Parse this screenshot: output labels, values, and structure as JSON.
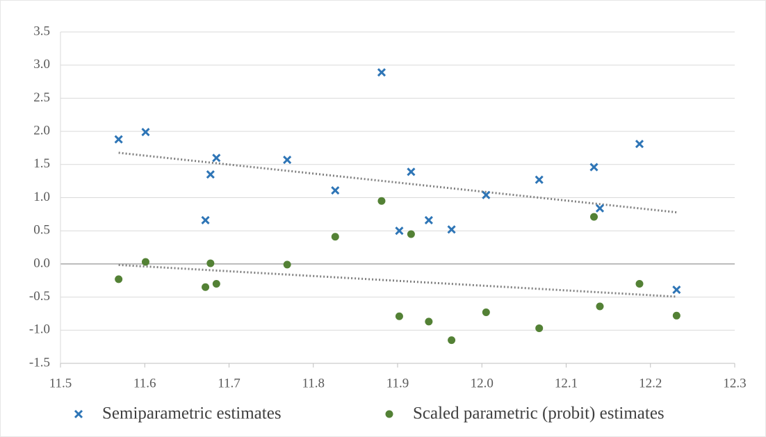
{
  "chart_data": {
    "type": "scatter",
    "xlim": [
      11.5,
      12.3
    ],
    "xticks": [
      11.5,
      11.6,
      11.7,
      11.8,
      11.9,
      {
        "value": 12.0,
        "label": "12.0"
      },
      12.1,
      12.2,
      12.3
    ],
    "ylim": [
      -1.5,
      3.5
    ],
    "yticks": [
      -1.5,
      {
        "value": -1.0,
        "label": "-1.0"
      },
      -0.5,
      {
        "value": 0.0,
        "label": "0.0"
      },
      0.5,
      {
        "value": 1.0,
        "label": "1.0"
      },
      1.5,
      {
        "value": 2.0,
        "label": "2.0"
      },
      2.5,
      {
        "value": 3.0,
        "label": "3.0"
      },
      3.5
    ],
    "grid": true,
    "trendline": "linear",
    "legend": "bottom",
    "series": [
      {
        "name": "Semiparametric estimates",
        "color": "#2e75b6",
        "marker": "x",
        "x": [
          11.569,
          11.601,
          11.672,
          11.678,
          11.685,
          11.769,
          11.826,
          11.881,
          11.902,
          11.916,
          11.937,
          11.964,
          12.005,
          12.068,
          12.133,
          12.14,
          12.187,
          12.231
        ],
        "values": [
          1.88,
          1.99,
          0.66,
          1.35,
          1.6,
          1.57,
          1.11,
          2.89,
          0.5,
          1.39,
          0.66,
          0.52,
          1.04,
          1.27,
          1.46,
          0.84,
          1.81,
          -0.39
        ]
      },
      {
        "name": "Scaled parametric (probit) estimates",
        "color": "#538135",
        "marker": "circle",
        "x": [
          11.569,
          11.601,
          11.672,
          11.678,
          11.685,
          11.769,
          11.826,
          11.881,
          11.902,
          11.916,
          11.937,
          11.964,
          12.005,
          12.068,
          12.133,
          12.14,
          12.187,
          12.231
        ],
        "values": [
          -0.23,
          0.03,
          -0.35,
          0.01,
          -0.3,
          -0.01,
          0.41,
          0.95,
          -0.79,
          0.45,
          -0.87,
          -1.15,
          -0.73,
          -0.97,
          0.71,
          -0.64,
          -0.3,
          -0.78
        ]
      }
    ]
  }
}
